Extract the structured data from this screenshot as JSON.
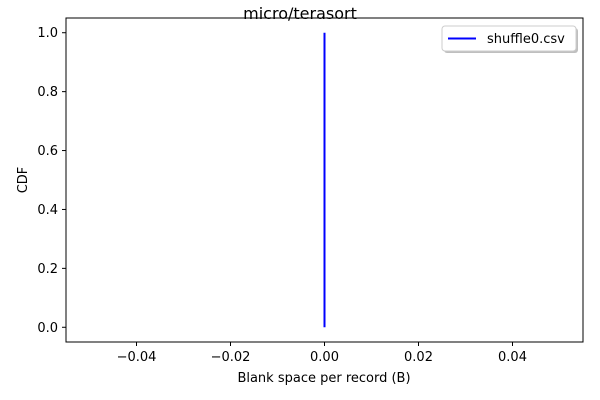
{
  "chart_data": {
    "type": "line",
    "title": "micro/terasort",
    "xlabel": "Blank space per record (B)",
    "ylabel": "CDF",
    "xlim": [
      -0.055,
      0.055
    ],
    "ylim": [
      -0.05,
      1.05
    ],
    "xticks": [
      -0.04,
      -0.02,
      0.0,
      0.02,
      0.04
    ],
    "xtick_labels": [
      "−0.04",
      "−0.02",
      "0.00",
      "0.02",
      "0.04"
    ],
    "yticks": [
      0.0,
      0.2,
      0.4,
      0.6,
      0.8,
      1.0
    ],
    "ytick_labels": [
      "0.0",
      "0.2",
      "0.4",
      "0.6",
      "0.8",
      "1.0"
    ],
    "grid": false,
    "legend_position": "top-right",
    "series": [
      {
        "name": "shuffle0.csv",
        "color": "#0000ff",
        "x": [
          0.0,
          0.0
        ],
        "y": [
          0.0,
          1.0
        ]
      }
    ]
  }
}
